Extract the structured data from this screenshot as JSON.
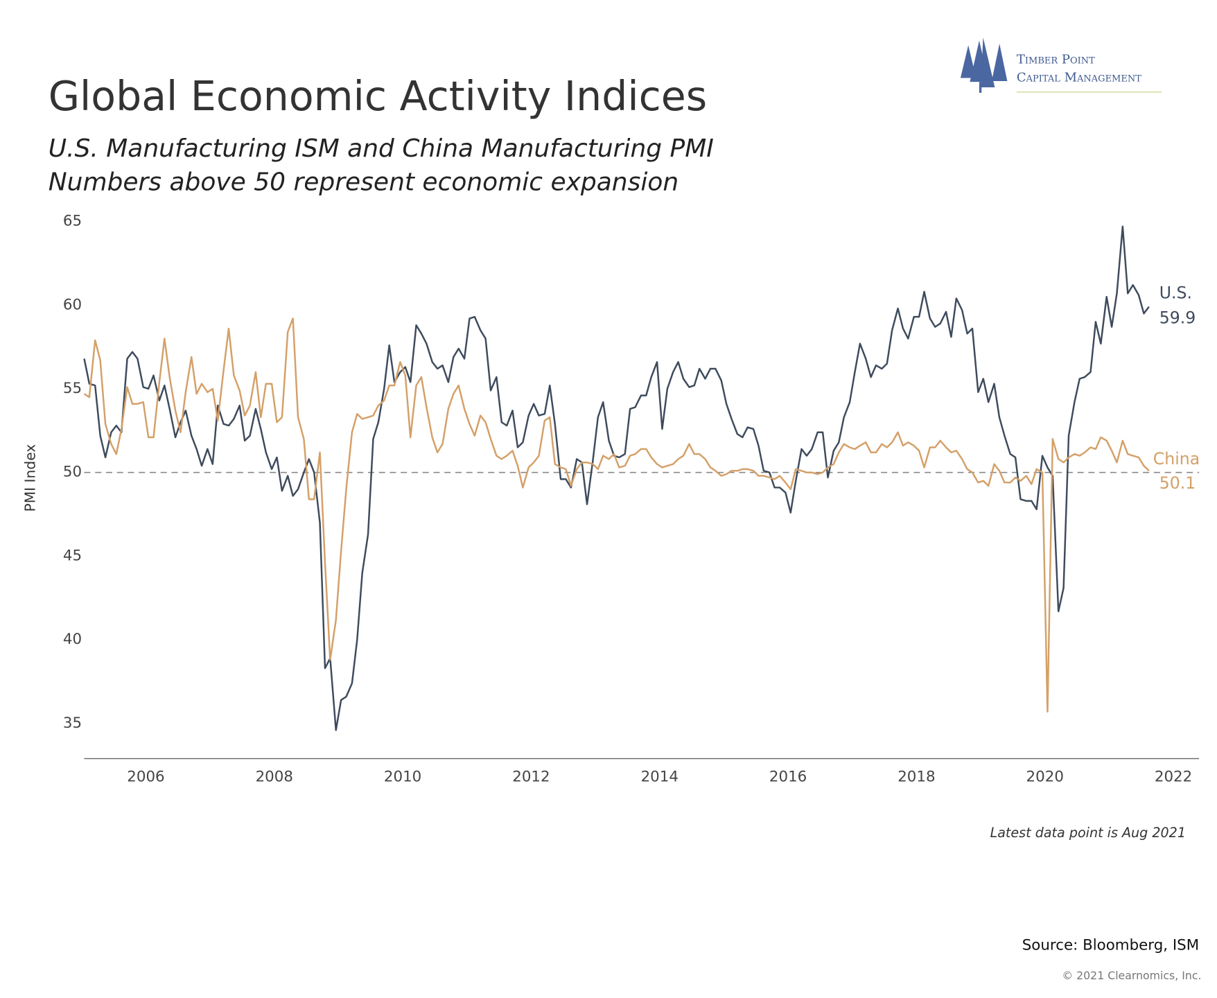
{
  "chart_data": {
    "type": "line",
    "title": "Global Economic Activity Indices",
    "subtitle": [
      "U.S. Manufacturing ISM and China Manufacturing PMI",
      "Numbers above 50 represent economic expansion"
    ],
    "ylabel": "PMI Index",
    "note": "Latest data point is Aug 2021",
    "source": "Source: Bloomberg, ISM",
    "copyright": "© 2021 Clearnomics, Inc.",
    "logo": [
      "Timber Point",
      "Capital Management"
    ],
    "xlim": [
      2005.04,
      2022.4
    ],
    "ylim": [
      32.9,
      65
    ],
    "xticks": [
      2006,
      2008,
      2010,
      2012,
      2014,
      2016,
      2018,
      2020,
      2022
    ],
    "yticks": [
      35,
      40,
      45,
      50,
      55,
      60,
      65
    ],
    "reference_line": 50,
    "grid": false,
    "x": [
      2005.04,
      2005.12,
      2005.21,
      2005.29,
      2005.37,
      2005.46,
      2005.54,
      2005.62,
      2005.71,
      2005.79,
      2005.87,
      2005.96,
      2006.04,
      2006.12,
      2006.21,
      2006.29,
      2006.37,
      2006.46,
      2006.54,
      2006.62,
      2006.71,
      2006.79,
      2006.87,
      2006.96,
      2007.04,
      2007.12,
      2007.21,
      2007.29,
      2007.37,
      2007.46,
      2007.54,
      2007.62,
      2007.71,
      2007.79,
      2007.87,
      2007.96,
      2008.04,
      2008.12,
      2008.21,
      2008.29,
      2008.37,
      2008.46,
      2008.54,
      2008.62,
      2008.71,
      2008.79,
      2008.87,
      2008.96,
      2009.04,
      2009.12,
      2009.21,
      2009.29,
      2009.37,
      2009.46,
      2009.54,
      2009.62,
      2009.71,
      2009.79,
      2009.87,
      2009.96,
      2010.04,
      2010.12,
      2010.21,
      2010.29,
      2010.37,
      2010.46,
      2010.54,
      2010.62,
      2010.71,
      2010.79,
      2010.87,
      2010.96,
      2011.04,
      2011.12,
      2011.21,
      2011.29,
      2011.37,
      2011.46,
      2011.54,
      2011.62,
      2011.71,
      2011.79,
      2011.87,
      2011.96,
      2012.04,
      2012.12,
      2012.21,
      2012.29,
      2012.37,
      2012.46,
      2012.54,
      2012.62,
      2012.71,
      2012.79,
      2012.87,
      2012.96,
      2013.04,
      2013.12,
      2013.21,
      2013.29,
      2013.37,
      2013.46,
      2013.54,
      2013.62,
      2013.71,
      2013.79,
      2013.87,
      2013.96,
      2014.04,
      2014.12,
      2014.21,
      2014.29,
      2014.37,
      2014.46,
      2014.54,
      2014.62,
      2014.71,
      2014.79,
      2014.87,
      2014.96,
      2015.04,
      2015.12,
      2015.21,
      2015.29,
      2015.37,
      2015.46,
      2015.54,
      2015.62,
      2015.71,
      2015.79,
      2015.87,
      2015.96,
      2016.04,
      2016.12,
      2016.21,
      2016.29,
      2016.37,
      2016.46,
      2016.54,
      2016.62,
      2016.71,
      2016.79,
      2016.87,
      2016.96,
      2017.04,
      2017.12,
      2017.21,
      2017.29,
      2017.37,
      2017.46,
      2017.54,
      2017.62,
      2017.71,
      2017.79,
      2017.87,
      2017.96,
      2018.04,
      2018.12,
      2018.21,
      2018.29,
      2018.37,
      2018.46,
      2018.54,
      2018.62,
      2018.71,
      2018.79,
      2018.87,
      2018.96,
      2019.04,
      2019.12,
      2019.21,
      2019.29,
      2019.37,
      2019.46,
      2019.54,
      2019.62,
      2019.71,
      2019.79,
      2019.87,
      2019.96,
      2020.04,
      2020.12,
      2020.21,
      2020.29,
      2020.37,
      2020.46,
      2020.54,
      2020.62,
      2020.71,
      2020.79,
      2020.87,
      2020.96,
      2021.04,
      2021.12,
      2021.21,
      2021.29,
      2021.37,
      2021.46,
      2021.54,
      2021.62
    ],
    "series": [
      {
        "name": "U.S.",
        "color": "#3e4b5d",
        "values": [
          56.8,
          55.3,
          55.2,
          52.2,
          50.9,
          52.4,
          52.8,
          52.4,
          56.8,
          57.2,
          56.8,
          55.1,
          55.0,
          55.8,
          54.3,
          55.2,
          53.8,
          52.1,
          53.0,
          53.7,
          52.2,
          51.4,
          50.4,
          51.4,
          50.5,
          54.0,
          52.9,
          52.8,
          53.2,
          54.0,
          51.9,
          52.2,
          53.8,
          52.6,
          51.2,
          50.2,
          50.9,
          48.9,
          49.8,
          48.6,
          49.0,
          50.0,
          50.8,
          50.0,
          47.0,
          38.3,
          38.9,
          34.6,
          36.4,
          36.6,
          37.4,
          40.0,
          44.0,
          46.3,
          52.0,
          53.0,
          55.0,
          57.6,
          55.4,
          56.0,
          56.3,
          55.4,
          58.8,
          58.3,
          57.7,
          56.6,
          56.2,
          56.4,
          55.4,
          56.9,
          57.4,
          56.8,
          59.2,
          59.3,
          58.5,
          58.0,
          54.9,
          55.7,
          53.0,
          52.8,
          53.7,
          51.5,
          51.8,
          53.4,
          54.1,
          53.4,
          53.5,
          55.2,
          52.9,
          49.6,
          49.6,
          49.1,
          50.8,
          50.6,
          48.1,
          50.7,
          53.3,
          54.2,
          51.9,
          51.0,
          50.9,
          51.1,
          53.8,
          53.9,
          54.6,
          54.6,
          55.7,
          56.6,
          52.6,
          55.0,
          56.0,
          56.6,
          55.6,
          55.1,
          55.2,
          56.2,
          55.6,
          56.2,
          56.2,
          55.5,
          54.1,
          53.2,
          52.3,
          52.1,
          52.7,
          52.6,
          51.6,
          50.1,
          50.0,
          49.1,
          49.1,
          48.8,
          47.6,
          49.5,
          51.4,
          51.0,
          51.4,
          52.4,
          52.4,
          49.7,
          51.3,
          51.8,
          53.3,
          54.2,
          56.0,
          57.7,
          56.8,
          55.7,
          56.4,
          56.2,
          56.5,
          58.5,
          59.8,
          58.6,
          58.0,
          59.3,
          59.3,
          60.8,
          59.2,
          58.7,
          58.9,
          59.6,
          58.1,
          60.4,
          59.7,
          58.3,
          58.6,
          54.8,
          55.6,
          54.2,
          55.3,
          53.3,
          52.2,
          51.1,
          50.9,
          48.4,
          48.3,
          48.3,
          47.8,
          51.0,
          50.3,
          49.8,
          41.7,
          43.1,
          52.2,
          54.2,
          55.6,
          55.7,
          56.0,
          59.0,
          57.7,
          60.5,
          58.7,
          60.7,
          64.7,
          60.7,
          61.2,
          60.6,
          59.5,
          59.9
        ]
      },
      {
        "name": "China",
        "color": "#d4a068",
        "values": [
          54.7,
          54.5,
          57.9,
          56.7,
          52.9,
          51.7,
          51.1,
          52.6,
          55.1,
          54.1,
          54.1,
          54.2,
          52.1,
          52.1,
          55.4,
          58.0,
          55.7,
          53.7,
          52.4,
          54.8,
          56.9,
          54.7,
          55.3,
          54.8,
          55.0,
          53.1,
          56.1,
          58.6,
          55.8,
          54.9,
          53.4,
          54.0,
          56.0,
          53.3,
          55.3,
          55.3,
          53.0,
          53.3,
          58.4,
          59.2,
          53.3,
          52.0,
          48.4,
          48.4,
          51.2,
          44.6,
          38.8,
          41.2,
          45.3,
          49.0,
          52.4,
          53.5,
          53.2,
          53.3,
          53.4,
          54.0,
          54.3,
          55.2,
          55.2,
          56.6,
          55.8,
          52.1,
          55.2,
          55.7,
          53.9,
          52.1,
          51.2,
          51.7,
          53.8,
          54.7,
          55.2,
          53.8,
          52.9,
          52.2,
          53.4,
          53.0,
          52.0,
          51.0,
          50.8,
          51.0,
          51.3,
          50.4,
          49.1,
          50.3,
          50.6,
          51.0,
          53.1,
          53.3,
          50.5,
          50.3,
          50.2,
          49.2,
          50.2,
          50.6,
          50.6,
          50.5,
          50.2,
          51.0,
          50.8,
          51.1,
          50.3,
          50.4,
          51.0,
          51.1,
          51.4,
          51.4,
          50.9,
          50.5,
          50.3,
          50.4,
          50.5,
          50.8,
          51.0,
          51.7,
          51.1,
          51.1,
          50.8,
          50.3,
          50.1,
          49.8,
          49.9,
          50.1,
          50.1,
          50.2,
          50.2,
          50.1,
          49.8,
          49.8,
          49.7,
          49.6,
          49.8,
          49.4,
          49.0,
          50.2,
          50.1,
          50.0,
          50.0,
          49.9,
          50.0,
          50.3,
          50.5,
          51.2,
          51.7,
          51.5,
          51.4,
          51.6,
          51.8,
          51.2,
          51.2,
          51.7,
          51.5,
          51.8,
          52.4,
          51.6,
          51.8,
          51.6,
          51.3,
          50.3,
          51.5,
          51.5,
          51.9,
          51.5,
          51.2,
          51.3,
          50.8,
          50.2,
          50.0,
          49.4,
          49.5,
          49.2,
          50.5,
          50.1,
          49.4,
          49.4,
          49.7,
          49.5,
          49.8,
          49.3,
          50.2,
          50.0,
          35.7,
          52.0,
          50.8,
          50.6,
          50.9,
          51.1,
          51.0,
          51.2,
          51.5,
          51.4,
          52.1,
          51.9,
          51.3,
          50.6,
          51.9,
          51.1,
          51.0,
          50.9,
          50.4,
          50.1
        ]
      }
    ]
  }
}
